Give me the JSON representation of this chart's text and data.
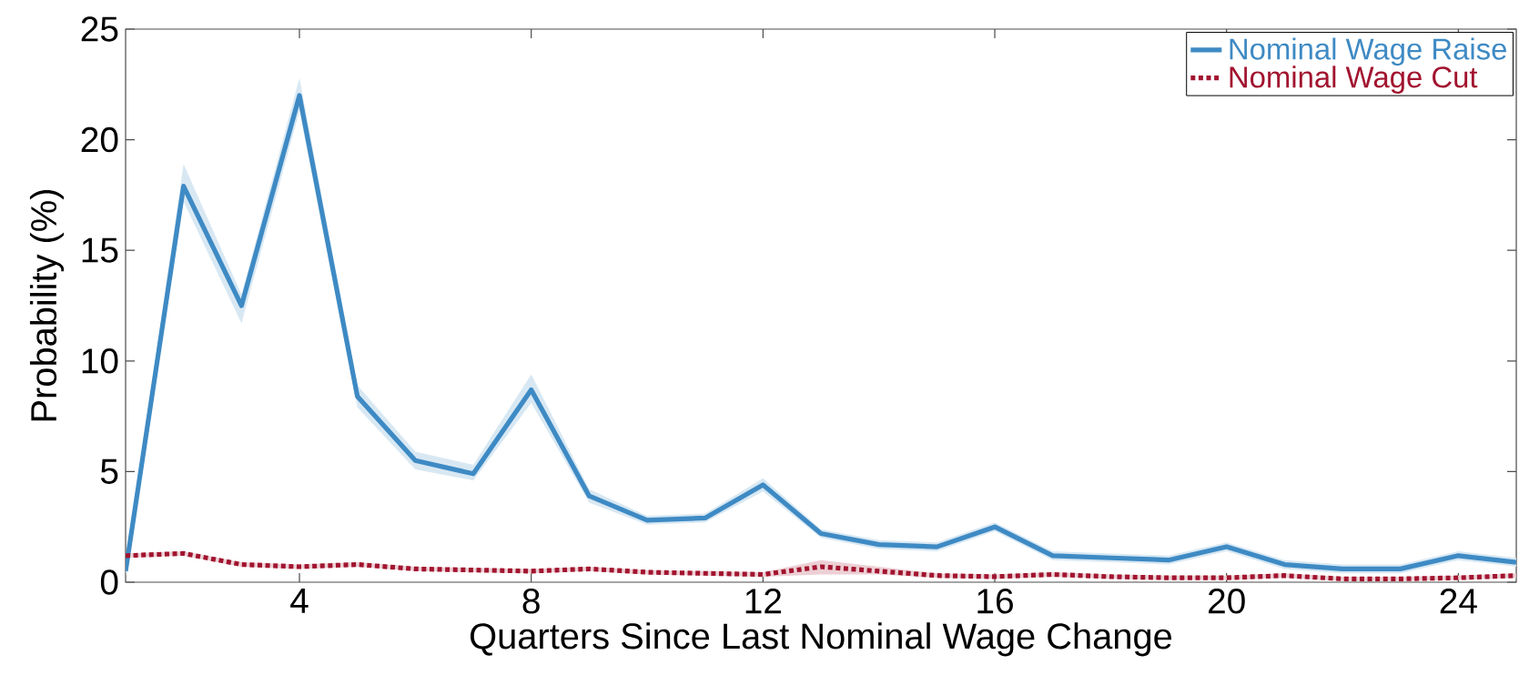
{
  "chart_data": {
    "type": "line",
    "xlabel": "Quarters Since Last Nominal Wage Change",
    "ylabel": "Probability (%)",
    "x": [
      1,
      2,
      3,
      4,
      5,
      6,
      7,
      8,
      9,
      10,
      11,
      12,
      13,
      14,
      15,
      16,
      17,
      18,
      19,
      20,
      21,
      22,
      23,
      24,
      25
    ],
    "series": [
      {
        "name": "Nominal Wage Raise",
        "color": "#3e8ac4",
        "line_style": "solid",
        "values": [
          0.5,
          17.9,
          12.5,
          22.0,
          8.4,
          5.5,
          4.9,
          8.7,
          3.9,
          2.8,
          2.9,
          4.4,
          2.2,
          1.7,
          1.6,
          2.5,
          1.2,
          1.1,
          1.0,
          1.6,
          0.8,
          0.6,
          0.6,
          1.2,
          0.9
        ],
        "lower": [
          0.3,
          17.2,
          11.7,
          21.3,
          7.9,
          5.1,
          4.6,
          8.1,
          3.6,
          2.6,
          2.7,
          4.1,
          2.0,
          1.5,
          1.4,
          2.3,
          1.0,
          0.9,
          0.8,
          1.4,
          0.6,
          0.4,
          0.4,
          1.0,
          0.7
        ],
        "upper": [
          0.7,
          18.9,
          13.0,
          22.8,
          8.9,
          5.9,
          5.3,
          9.4,
          4.2,
          3.0,
          3.1,
          4.7,
          2.4,
          1.9,
          1.8,
          2.7,
          1.4,
          1.3,
          1.2,
          1.8,
          1.0,
          0.8,
          0.8,
          1.4,
          1.1
        ]
      },
      {
        "name": "Nominal Wage Cut",
        "color": "#a2142f",
        "line_style": "dotted",
        "values": [
          1.2,
          1.3,
          0.8,
          0.7,
          0.8,
          0.6,
          0.55,
          0.5,
          0.6,
          0.45,
          0.4,
          0.35,
          0.7,
          0.5,
          0.3,
          0.25,
          0.35,
          0.25,
          0.2,
          0.2,
          0.3,
          0.15,
          0.15,
          0.2,
          0.3
        ],
        "lower": [
          1.1,
          1.2,
          0.7,
          0.6,
          0.7,
          0.5,
          0.45,
          0.4,
          0.5,
          0.35,
          0.3,
          0.25,
          0.35,
          0.35,
          0.2,
          0.15,
          0.25,
          0.15,
          0.1,
          0.1,
          0.2,
          0.05,
          0.05,
          0.1,
          0.2
        ],
        "upper": [
          1.3,
          1.4,
          0.9,
          0.8,
          0.9,
          0.7,
          0.65,
          0.6,
          0.7,
          0.55,
          0.5,
          0.45,
          1.0,
          0.7,
          0.4,
          0.35,
          0.45,
          0.35,
          0.3,
          0.3,
          0.4,
          0.25,
          0.25,
          0.3,
          0.4
        ]
      }
    ],
    "xlim": [
      1,
      25
    ],
    "ylim": [
      0,
      25
    ],
    "xticks": [
      4,
      8,
      12,
      16,
      20,
      24
    ],
    "yticks": [
      0,
      5,
      10,
      15,
      20,
      25
    ],
    "grid": false,
    "legend": "top right"
  }
}
